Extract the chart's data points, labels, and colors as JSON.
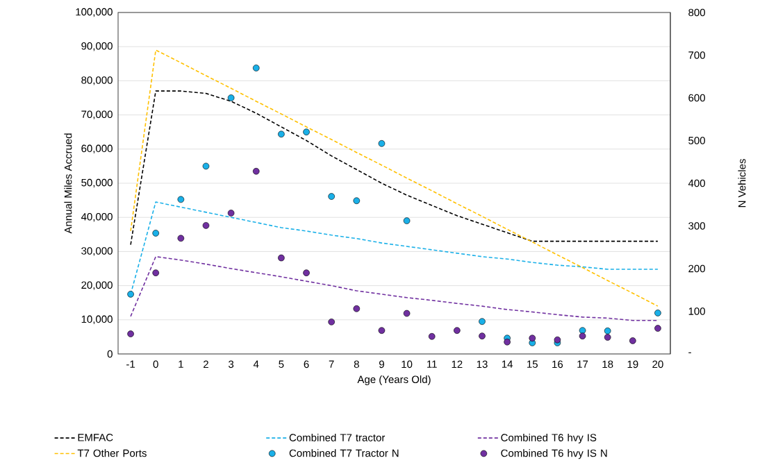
{
  "chart_data": {
    "type": "line",
    "xlabel": "Age (Years Old)",
    "ylabel": "Annual Miles Accrued",
    "y2label": "N Vehicles",
    "x": [
      -1,
      0,
      1,
      2,
      3,
      4,
      5,
      6,
      7,
      8,
      9,
      10,
      11,
      12,
      13,
      14,
      15,
      16,
      17,
      18,
      19,
      20
    ],
    "xlim": [
      -1.5,
      20.5
    ],
    "xticks": [
      -1,
      0,
      1,
      2,
      3,
      4,
      5,
      6,
      7,
      8,
      9,
      10,
      11,
      12,
      13,
      14,
      15,
      16,
      17,
      18,
      19,
      20
    ],
    "ylim": [
      0,
      100000
    ],
    "yticks": [
      0,
      {
        "value": 10000,
        "label": "10,000"
      },
      {
        "value": 20000,
        "label": "20,000"
      },
      {
        "value": 30000,
        "label": "30,000"
      },
      {
        "value": 40000,
        "label": "40,000"
      },
      {
        "value": 50000,
        "label": "50,000"
      },
      {
        "value": 60000,
        "label": "60,000"
      },
      {
        "value": 70000,
        "label": "70,000"
      },
      {
        "value": 80000,
        "label": "80,000"
      },
      {
        "value": 90000,
        "label": "90,000"
      },
      {
        "value": 100000,
        "label": "100,000"
      }
    ],
    "y2lim": [
      0,
      800
    ],
    "y2ticks": [
      {
        "value": 0,
        "label": "-"
      },
      100,
      200,
      300,
      400,
      500,
      600,
      700,
      800
    ],
    "grid": "y",
    "legend": "bottom",
    "series": [
      {
        "name": "EMFAC",
        "color": "#000000",
        "line_style": "dashed",
        "marker": "none",
        "values": [
          32000,
          77000,
          77000,
          76300,
          74000,
          70500,
          66500,
          62500,
          58000,
          54000,
          50000,
          46500,
          43500,
          40500,
          38000,
          35500,
          33000,
          33000,
          33000,
          33000,
          33000,
          33000
        ]
      },
      {
        "name": "Combined T7 tractor",
        "color": "#1ab0e8",
        "line_style": "dashed",
        "marker": "none",
        "values": [
          17500,
          44500,
          43000,
          41500,
          40000,
          38500,
          37000,
          36000,
          34800,
          33800,
          32500,
          31500,
          30500,
          29500,
          28500,
          27800,
          26800,
          26000,
          25500,
          24800,
          24800,
          24800
        ]
      },
      {
        "name": "Combined T6 hvy IS",
        "color": "#7030a0",
        "line_style": "dashed",
        "marker": "none",
        "values": [
          11000,
          28500,
          27500,
          26300,
          25000,
          23800,
          22600,
          21300,
          20000,
          18500,
          17500,
          16500,
          15700,
          14800,
          14000,
          13000,
          12300,
          11500,
          10800,
          10500,
          9800,
          9800
        ]
      },
      {
        "name": "T7 Other Ports",
        "color": "#ffc000",
        "line_style": "dashed",
        "marker": "none",
        "values": [
          36000,
          89000,
          85300,
          81500,
          77800,
          74000,
          70300,
          66500,
          62800,
          59000,
          55300,
          51500,
          47800,
          44000,
          40300,
          36500,
          32800,
          29000,
          25300,
          21500,
          17800,
          14000
        ]
      },
      {
        "name": "Combined T7 Tractor N",
        "type": "scatter",
        "axis": "y2",
        "color": "#1ab0e8",
        "marker": "circle",
        "values": [
          140,
          283,
          362,
          440,
          600,
          670,
          515,
          520,
          369,
          359,
          493,
          312,
          null,
          null,
          76,
          37,
          26,
          26,
          55,
          54,
          null,
          96
        ]
      },
      {
        "name": "Combined T6 hvy IS N",
        "type": "scatter",
        "axis": "y2",
        "color": "#7030a0",
        "marker": "circle",
        "values": [
          47,
          190,
          271,
          301,
          330,
          428,
          225,
          190,
          75,
          106,
          55,
          95,
          41,
          55,
          42,
          28,
          37,
          33,
          42,
          39,
          31,
          60
        ]
      }
    ]
  }
}
